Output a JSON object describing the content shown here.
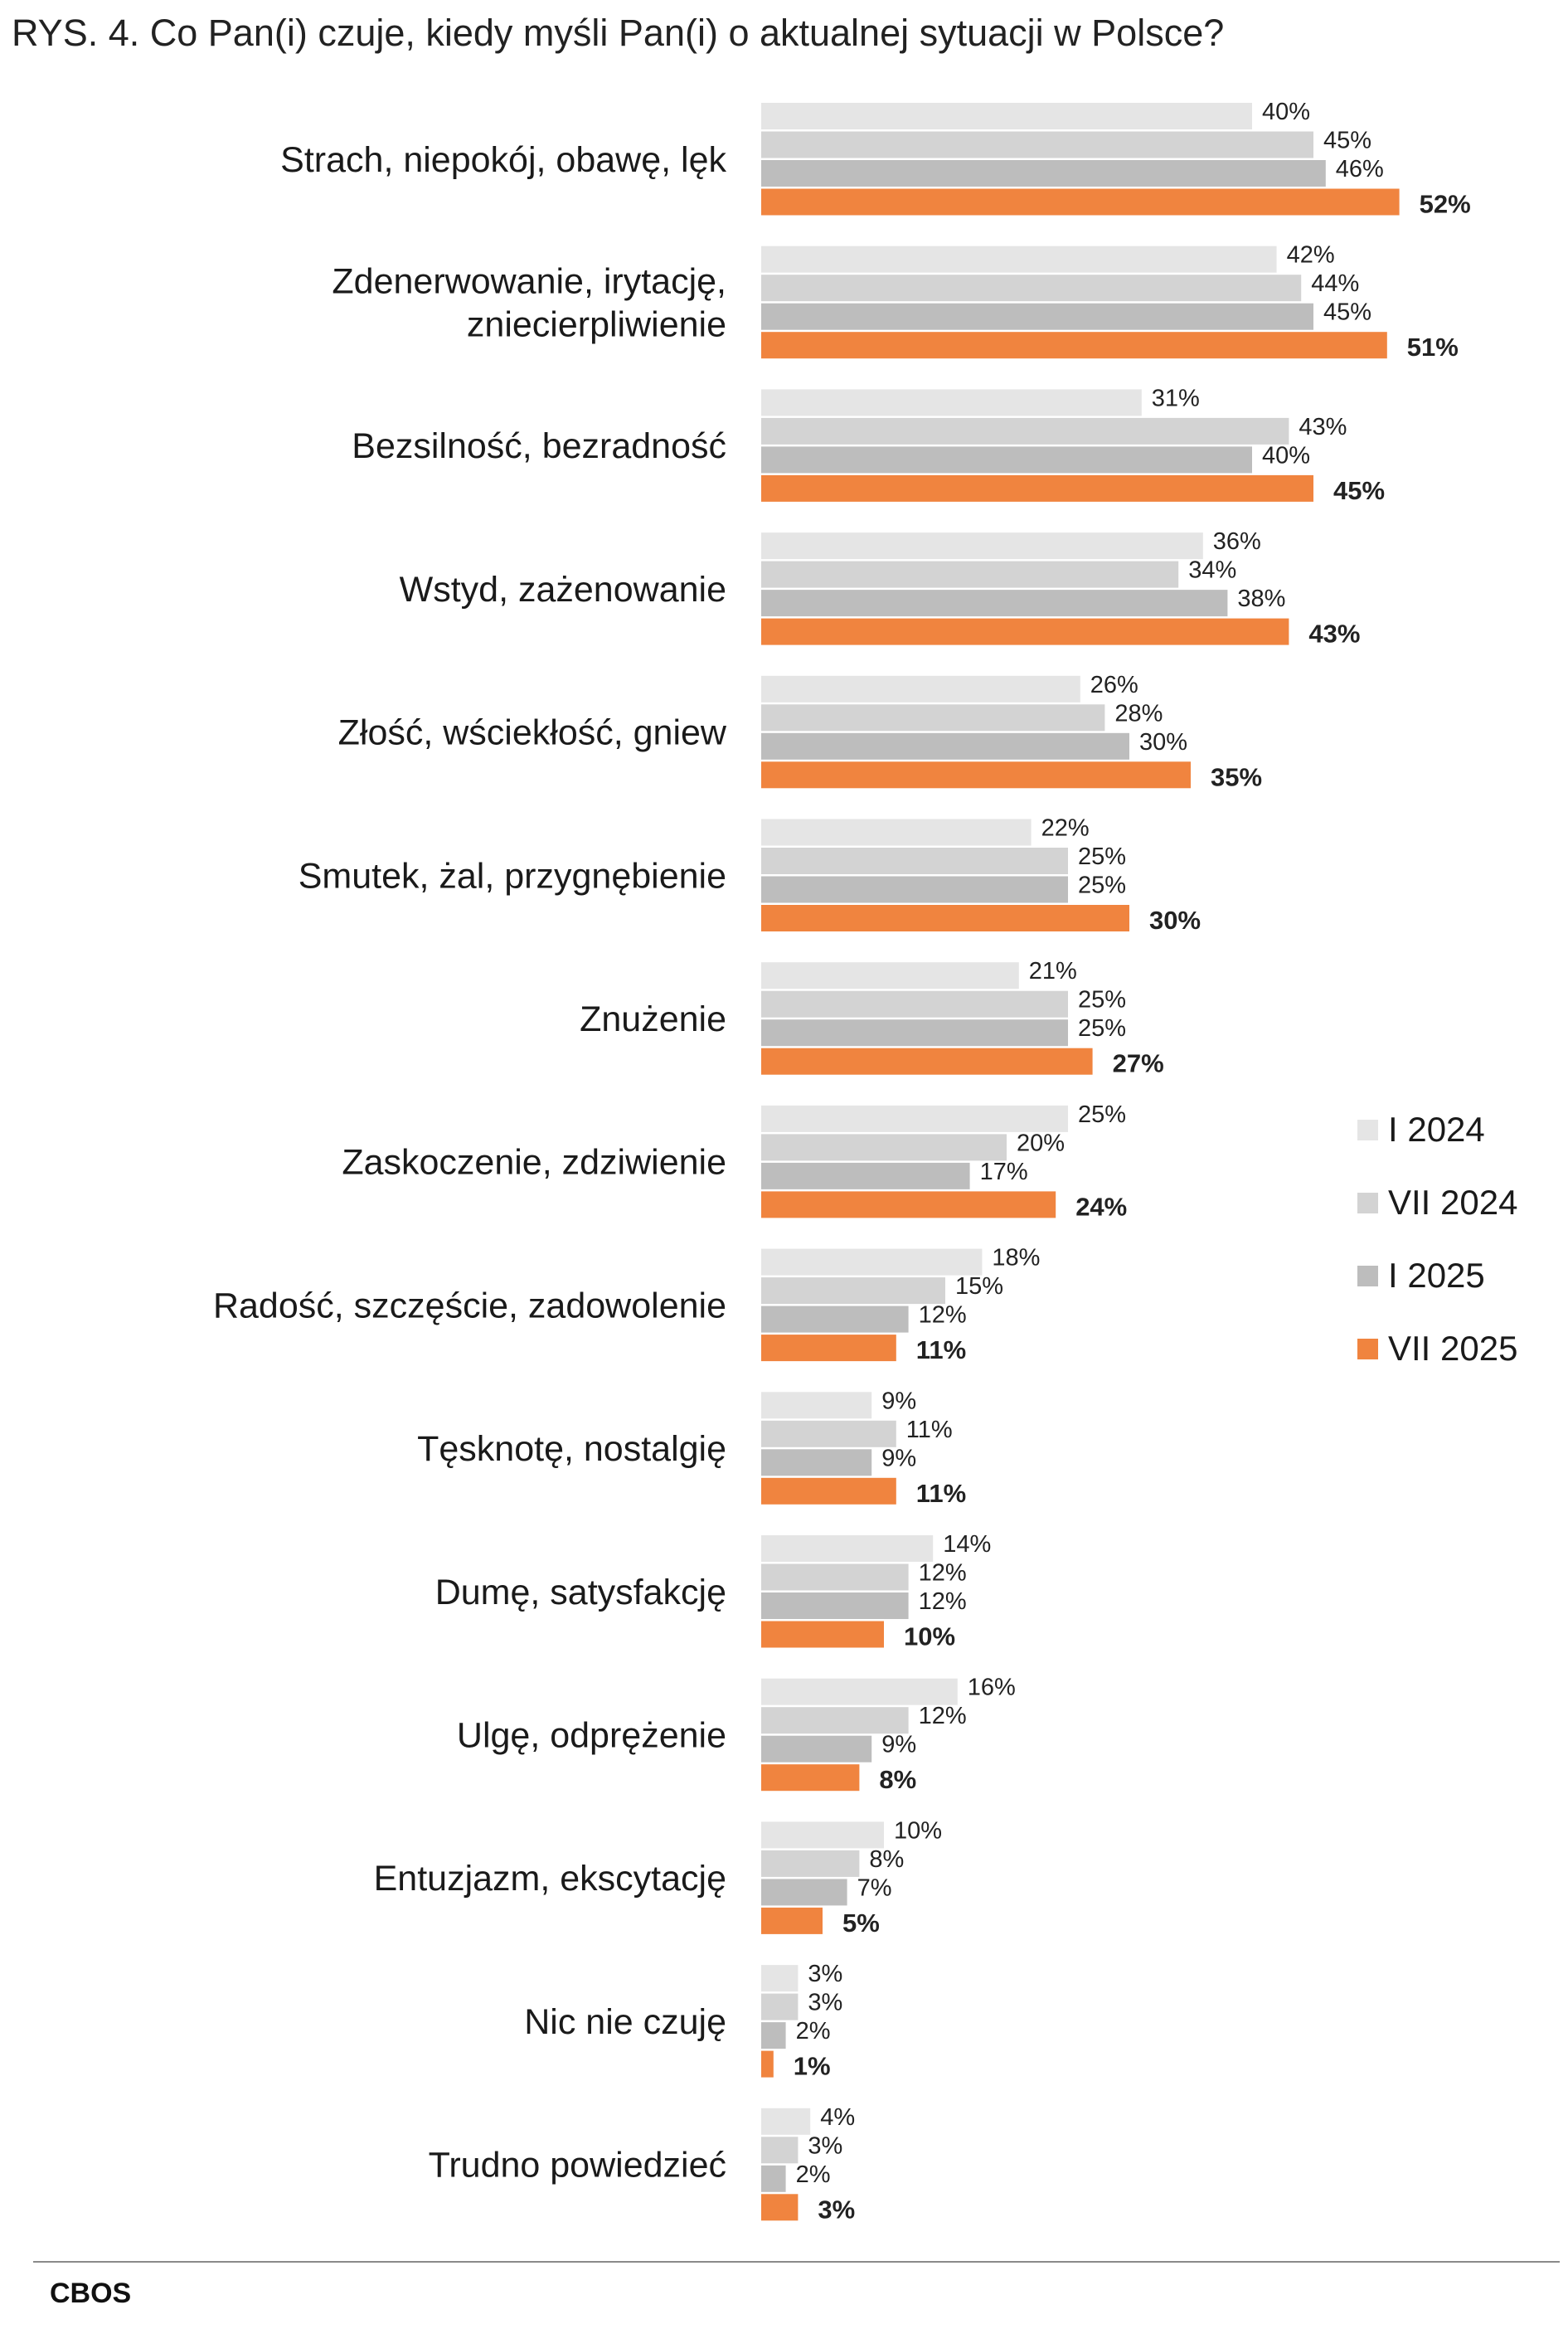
{
  "chart_data": {
    "type": "bar",
    "orientation": "horizontal",
    "title": "RYS. 4. Co Pan(i) czuje, kiedy myśli Pan(i) o aktualnej sytuacji w Polsce?",
    "categories": [
      "Strach, niepokój, obawę, lęk",
      "Zdenerwowanie, irytację,\nzniecierpliwienie",
      "Bezsilność, bezradność",
      "Wstyd, zażenowanie",
      "Złość, wściekłość, gniew",
      "Smutek, żal, przygnębienie",
      "Znużenie",
      "Zaskoczenie, zdziwienie",
      "Radość, szczęście, zadowolenie",
      "Tęsknotę, nostalgię",
      "Dumę, satysfakcję",
      "Ulgę, odprężenie",
      "Entuzjazm, ekscytację",
      "Nic nie czuję",
      "Trudno powiedzieć"
    ],
    "series": [
      {
        "name": "I 2024",
        "color": "#e5e5e5",
        "values": [
          40,
          42,
          31,
          36,
          26,
          22,
          21,
          25,
          18,
          9,
          14,
          16,
          10,
          3,
          4
        ]
      },
      {
        "name": "VII 2024",
        "color": "#d3d3d3",
        "values": [
          45,
          44,
          43,
          34,
          28,
          25,
          25,
          20,
          15,
          11,
          12,
          12,
          8,
          3,
          3
        ]
      },
      {
        "name": "I 2025",
        "color": "#bdbdbd",
        "values": [
          46,
          45,
          40,
          38,
          30,
          25,
          25,
          17,
          12,
          9,
          12,
          9,
          7,
          2,
          2
        ]
      },
      {
        "name": "VII 2025",
        "color": "#f0843f",
        "values": [
          52,
          51,
          45,
          43,
          35,
          30,
          27,
          24,
          11,
          11,
          10,
          8,
          5,
          1,
          3
        ]
      }
    ],
    "value_suffix": "%",
    "highlight_series": "VII 2025",
    "legend_position": "right",
    "grid": false,
    "source": "CBOS"
  }
}
